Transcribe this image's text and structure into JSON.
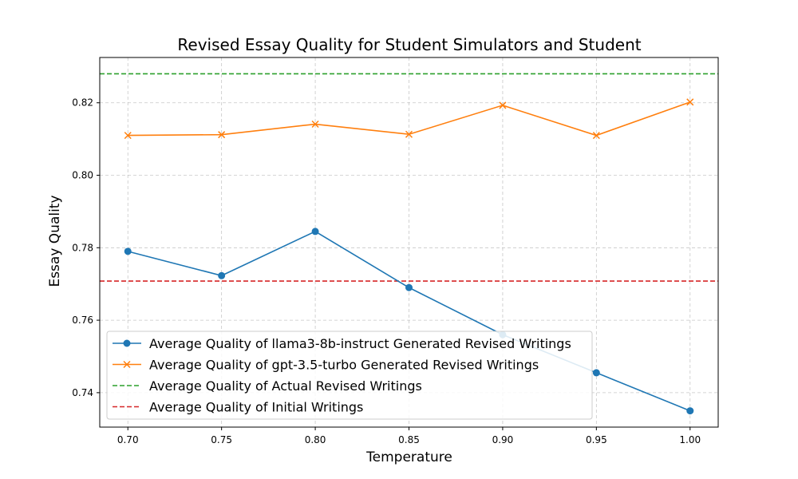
{
  "chart_data": {
    "type": "line",
    "title": "Revised Essay Quality for Student Simulators and Student",
    "xlabel": "Temperature",
    "ylabel": "Essay Quality",
    "x": [
      0.7,
      0.75,
      0.8,
      0.85,
      0.9,
      0.95,
      1.0
    ],
    "x_tick_labels": [
      "0.70",
      "0.75",
      "0.80",
      "0.85",
      "0.90",
      "0.95",
      "1.00"
    ],
    "y_ticks": [
      0.74,
      0.76,
      0.78,
      0.8,
      0.82
    ],
    "y_tick_labels": [
      "0.74",
      "0.76",
      "0.78",
      "0.80",
      "0.82"
    ],
    "xlim": [
      0.685,
      1.015
    ],
    "ylim": [
      0.7305,
      0.8325
    ],
    "grid": true,
    "legend_position": "lower-left",
    "series": [
      {
        "name": "Average Quality of llama3-8b-instruct Generated Revised Writings",
        "values": [
          0.779,
          0.7723,
          0.7845,
          0.769,
          0.756,
          0.7455,
          0.735
        ],
        "color": "#1f77b4",
        "marker": "circle",
        "style": "solid"
      },
      {
        "name": "Average Quality of gpt-3.5-turbo Generated Revised Writings",
        "values": [
          0.811,
          0.8112,
          0.8141,
          0.8113,
          0.8193,
          0.811,
          0.8202
        ],
        "color": "#ff7f0e",
        "marker": "x",
        "style": "solid"
      }
    ],
    "reference_lines": [
      {
        "name": "Average Quality of Actual Revised Writings",
        "value": 0.828,
        "color": "#2ca02c",
        "style": "dashed"
      },
      {
        "name": "Average Quality of Initial Writings",
        "value": 0.7708,
        "color": "#d62728",
        "style": "dashed"
      }
    ]
  }
}
